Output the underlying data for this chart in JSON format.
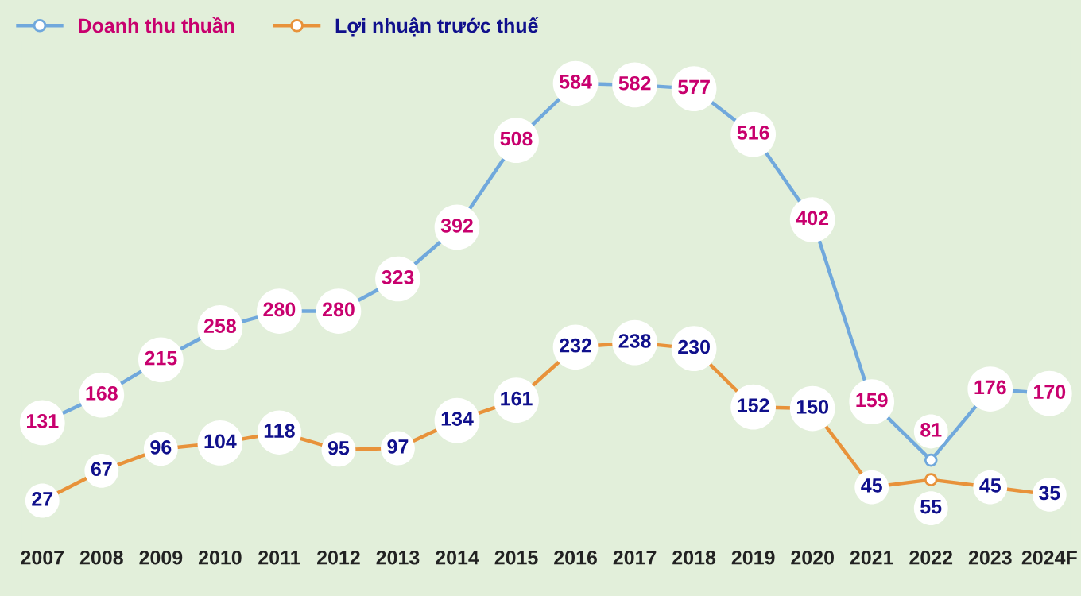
{
  "chart_data": {
    "type": "line",
    "categories": [
      "2007",
      "2008",
      "2009",
      "2010",
      "2011",
      "2012",
      "2013",
      "2014",
      "2015",
      "2016",
      "2017",
      "2018",
      "2019",
      "2020",
      "2021",
      "2022",
      "2023",
      "2024F"
    ],
    "series": [
      {
        "name": "Doanh thu thuần",
        "color": "#70a8dc",
        "values": [
          131,
          168,
          215,
          258,
          280,
          280,
          323,
          392,
          508,
          584,
          582,
          577,
          516,
          402,
          159,
          81,
          176,
          170
        ]
      },
      {
        "name": "Lợi nhuận trước thuế",
        "color": "#e8923a",
        "values": [
          27,
          67,
          96,
          104,
          118,
          95,
          97,
          134,
          161,
          232,
          238,
          230,
          152,
          150,
          45,
          55,
          45,
          35
        ]
      }
    ],
    "data_labels": true,
    "marker": "circle",
    "line_style": "solid",
    "legend": "top left",
    "grid": false,
    "tick_labels": "x"
  }
}
